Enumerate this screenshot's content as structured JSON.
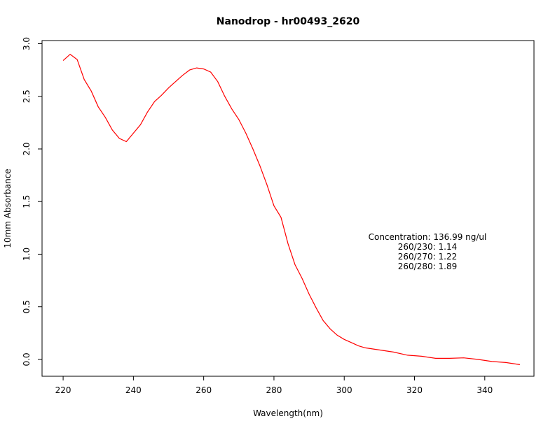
{
  "chart_data": {
    "type": "line",
    "title": "Nanodrop - hr00493_2620",
    "xlabel": "Wavelength(nm)",
    "ylabel": "10mm Absorbance",
    "xlim": [
      214,
      354
    ],
    "ylim": [
      -0.16,
      3.03
    ],
    "xticks": [
      220,
      240,
      260,
      280,
      300,
      320,
      340
    ],
    "yticks": [
      "0.0",
      "0.5",
      "1.0",
      "1.5",
      "2.0",
      "2.5",
      "3.0"
    ],
    "grid": false,
    "series": [
      {
        "name": "absorbance",
        "color": "#ff0000",
        "x": [
          220,
          222,
          224,
          226,
          228,
          230,
          232,
          234,
          236,
          238,
          240,
          242,
          244,
          246,
          248,
          250,
          252,
          254,
          256,
          258,
          260,
          262,
          264,
          266,
          268,
          270,
          272,
          274,
          276,
          278,
          280,
          282,
          284,
          286,
          288,
          290,
          292,
          294,
          296,
          298,
          300,
          302,
          304,
          306,
          310,
          314,
          318,
          322,
          326,
          330,
          334,
          338,
          342,
          346,
          350
        ],
        "y": [
          2.84,
          2.9,
          2.85,
          2.66,
          2.55,
          2.4,
          2.3,
          2.18,
          2.1,
          2.07,
          2.15,
          2.23,
          2.35,
          2.45,
          2.51,
          2.58,
          2.64,
          2.7,
          2.75,
          2.77,
          2.76,
          2.73,
          2.64,
          2.5,
          2.38,
          2.28,
          2.15,
          2.0,
          1.84,
          1.66,
          1.46,
          1.35,
          1.1,
          0.9,
          0.77,
          0.62,
          0.49,
          0.37,
          0.29,
          0.23,
          0.19,
          0.16,
          0.13,
          0.11,
          0.09,
          0.07,
          0.04,
          0.03,
          0.01,
          0.01,
          0.015,
          0.0,
          -0.02,
          -0.03,
          -0.05
        ]
      }
    ],
    "annotations": [
      "Concentration: 136.99 ng/ul",
      "260/230: 1.14",
      "260/270: 1.22",
      "260/280: 1.89"
    ]
  }
}
